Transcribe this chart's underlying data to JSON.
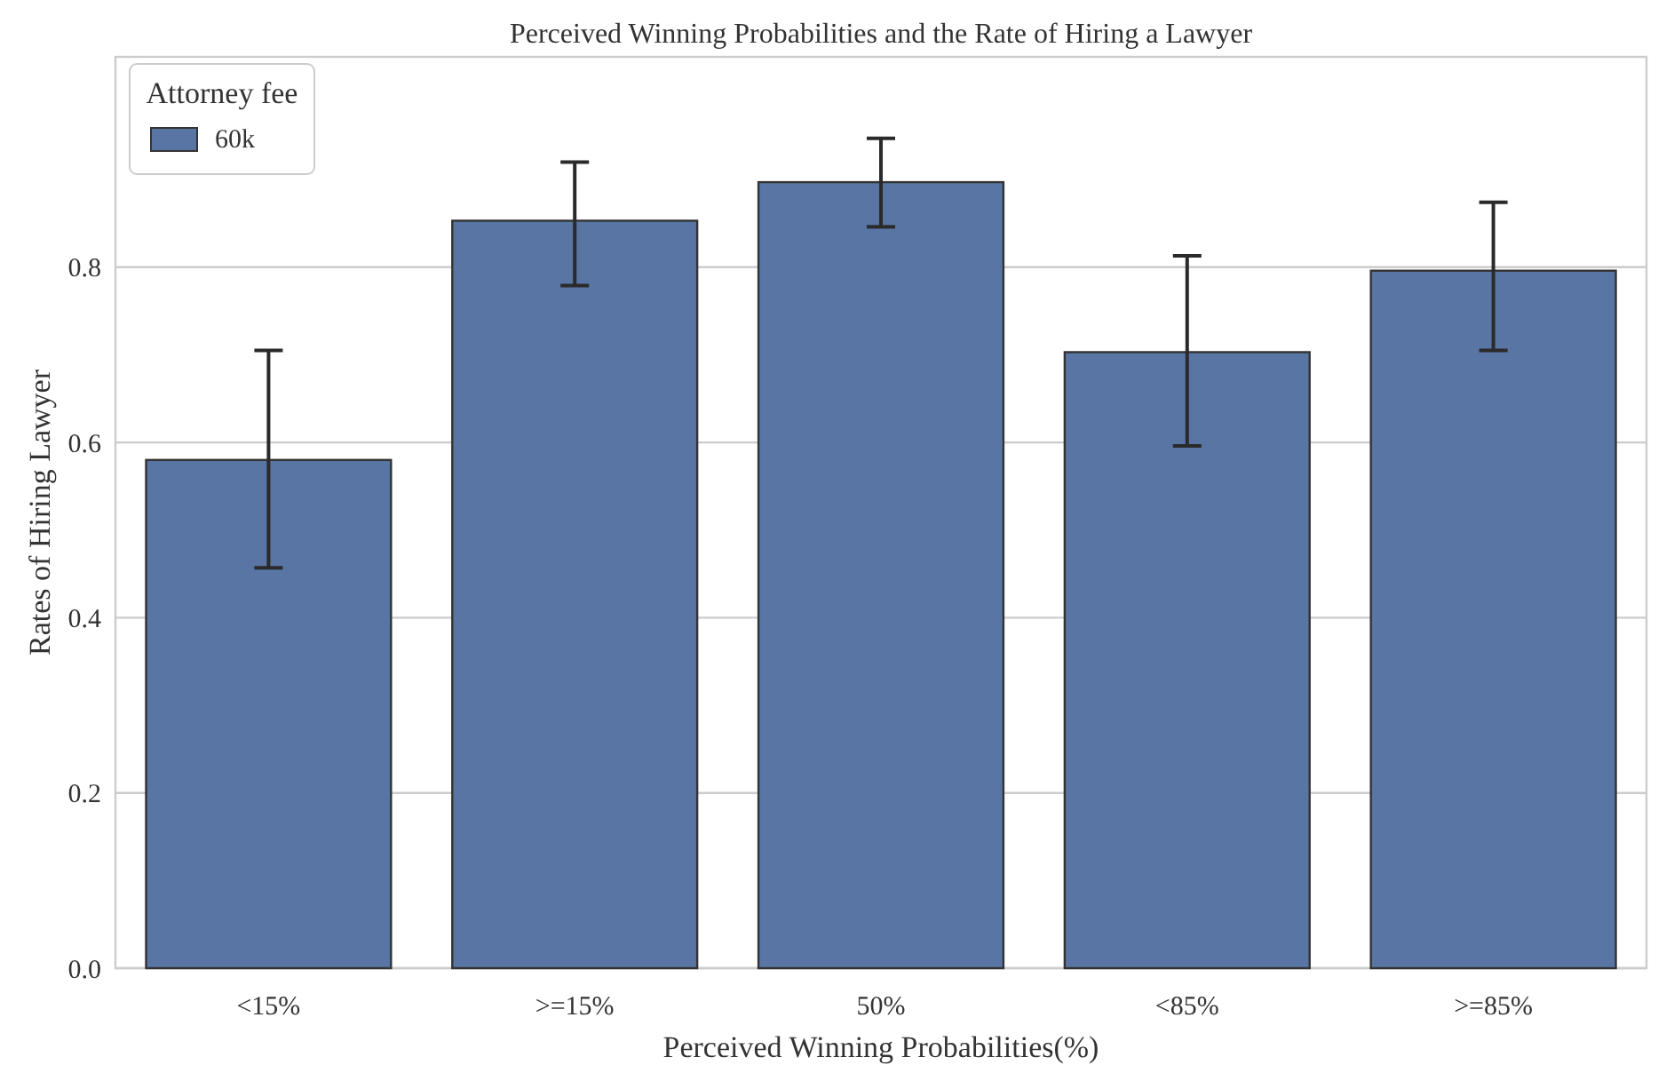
{
  "chart_data": {
    "type": "bar",
    "title": "Perceived Winning Probabilities and the Rate of Hiring a Lawyer",
    "xlabel": "Perceived Winning Probabilities(%)",
    "ylabel": "Rates of Hiring Lawyer",
    "legend_title": "Attorney fee",
    "categories": [
      "<15%",
      ">=15%",
      "50%",
      "<85%",
      ">=85%"
    ],
    "series": [
      {
        "name": "60k",
        "color": "#5875a4",
        "values": [
          0.58,
          0.853,
          0.897,
          0.703,
          0.796
        ],
        "errors": [
          [
            0.457,
            0.705
          ],
          [
            0.779,
            0.92
          ],
          [
            0.846,
            0.947
          ],
          [
            0.596,
            0.813
          ],
          [
            0.705,
            0.874
          ]
        ]
      }
    ],
    "ylim": [
      0,
      1.04
    ],
    "yticks": [
      {
        "value": 0,
        "label": "0.0"
      },
      {
        "value": 0.2,
        "label": "0.2"
      },
      {
        "value": 0.4,
        "label": "0.4"
      },
      {
        "value": 0.6,
        "label": "0.6"
      },
      {
        "value": 0.8,
        "label": "0.8"
      }
    ],
    "grid": "y",
    "legend": "top left"
  }
}
